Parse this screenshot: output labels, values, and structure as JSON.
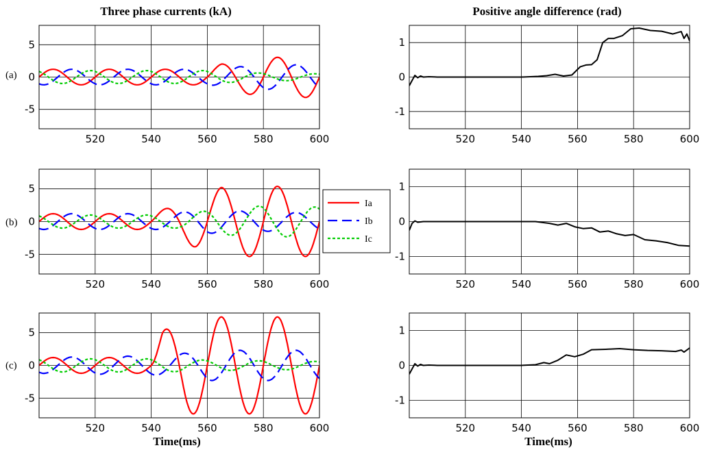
{
  "titles": {
    "left": "Three phase currents (kA)",
    "right": "Positive angle difference (rad)"
  },
  "xlabel": "Time(ms)",
  "row_labels": [
    "(a)",
    "(b)",
    "(c)"
  ],
  "legend": {
    "entries": [
      {
        "name": "Ia",
        "color": "#ff0000",
        "style": "solid"
      },
      {
        "name": "Ib",
        "color": "#0000ff",
        "style": "dashed"
      },
      {
        "name": "Ic",
        "color": "#00cc00",
        "style": "dotted"
      }
    ]
  },
  "colors": {
    "Ia": "#ff0000",
    "Ib": "#0000ff",
    "Ic": "#00cc00",
    "angle": "#000000"
  },
  "chart_data": [
    {
      "type": "line",
      "panel": "a-currents",
      "xlim": [
        500,
        600
      ],
      "ylim": [
        -8,
        8
      ],
      "grid": true,
      "xticks": [
        520,
        540,
        560,
        580,
        600
      ],
      "yticks": [
        5,
        0,
        -5
      ],
      "series": [
        {
          "name": "Ia",
          "envelope": [
            [
              500,
              1.2
            ],
            [
              560,
              1.2
            ],
            [
              565,
              2.0
            ],
            [
              580,
              3.0
            ],
            [
              600,
              3.2
            ]
          ],
          "phase": 0
        },
        {
          "name": "Ib",
          "envelope": [
            [
              500,
              1.2
            ],
            [
              560,
              1.2
            ],
            [
              580,
              1.9
            ],
            [
              600,
              1.9
            ]
          ],
          "phase": -2.094
        },
        {
          "name": "Ic",
          "envelope": [
            [
              500,
              1.0
            ],
            [
              560,
              1.0
            ],
            [
              580,
              0.6
            ],
            [
              600,
              0.5
            ]
          ],
          "phase": 2.094
        }
      ]
    },
    {
      "type": "line",
      "panel": "a-angle",
      "xlim": [
        500,
        600
      ],
      "ylim": [
        -1.5,
        1.5
      ],
      "grid": true,
      "xticks": [
        520,
        540,
        560,
        580,
        600
      ],
      "yticks": [
        1,
        0,
        -1
      ],
      "series": [
        {
          "name": "angle",
          "x": [
            500,
            501,
            502,
            503,
            504,
            505,
            507,
            510,
            540,
            546,
            549,
            552,
            555,
            558,
            561,
            563,
            565,
            567,
            569,
            571,
            573,
            576,
            579,
            582,
            586,
            590,
            594,
            597,
            598,
            599,
            600
          ],
          "y": [
            -0.25,
            -0.1,
            0.05,
            -0.02,
            0.03,
            0.0,
            0.01,
            0.0,
            0.0,
            0.02,
            0.04,
            0.08,
            0.03,
            0.06,
            0.3,
            0.35,
            0.36,
            0.5,
            1.0,
            1.12,
            1.12,
            1.2,
            1.4,
            1.42,
            1.35,
            1.33,
            1.25,
            1.32,
            1.12,
            1.25,
            1.05
          ]
        }
      ]
    },
    {
      "type": "line",
      "panel": "b-currents",
      "xlim": [
        500,
        600
      ],
      "ylim": [
        -8,
        8
      ],
      "grid": true,
      "xticks": [
        520,
        540,
        560,
        580,
        600
      ],
      "yticks": [
        5,
        0,
        -5
      ],
      "series": [
        {
          "name": "Ia",
          "envelope": [
            [
              500,
              1.2
            ],
            [
              540,
              1.2
            ],
            [
              548,
              2.4
            ],
            [
              556,
              4.0
            ],
            [
              565,
              5.2
            ],
            [
              580,
              5.4
            ],
            [
              600,
              5.3
            ]
          ],
          "phase": 0
        },
        {
          "name": "Ib",
          "envelope": [
            [
              500,
              1.2
            ],
            [
              545,
              1.2
            ],
            [
              560,
              1.8
            ],
            [
              580,
              1.5
            ],
            [
              600,
              1.3
            ]
          ],
          "phase": -2.094
        },
        {
          "name": "Ic",
          "envelope": [
            [
              500,
              1.0
            ],
            [
              550,
              1.0
            ],
            [
              565,
              2.0
            ],
            [
              580,
              2.4
            ],
            [
              600,
              2.2
            ]
          ],
          "phase": 2.094
        }
      ]
    },
    {
      "type": "line",
      "panel": "b-angle",
      "xlim": [
        500,
        600
      ],
      "ylim": [
        -1.5,
        1.5
      ],
      "grid": true,
      "xticks": [
        520,
        540,
        560,
        580,
        600
      ],
      "yticks": [
        1,
        0,
        -1
      ],
      "series": [
        {
          "name": "angle",
          "x": [
            500,
            501,
            502,
            503,
            505,
            510,
            540,
            545,
            550,
            553,
            556,
            559,
            562,
            565,
            568,
            571,
            574,
            577,
            580,
            584,
            588,
            592,
            596,
            600
          ],
          "y": [
            -0.25,
            -0.05,
            0.02,
            -0.02,
            0.0,
            0.0,
            0.0,
            0.0,
            -0.05,
            -0.1,
            -0.05,
            -0.15,
            -0.2,
            -0.18,
            -0.3,
            -0.27,
            -0.35,
            -0.4,
            -0.37,
            -0.52,
            -0.55,
            -0.6,
            -0.68,
            -0.7
          ]
        }
      ]
    },
    {
      "type": "line",
      "panel": "c-currents",
      "xlim": [
        500,
        600
      ],
      "ylim": [
        -8,
        8
      ],
      "grid": true,
      "xticks": [
        520,
        540,
        560,
        580,
        600
      ],
      "yticks": [
        5,
        0,
        -5
      ],
      "series": [
        {
          "name": "Ia",
          "envelope": [
            [
              500,
              1.2
            ],
            [
              540,
              1.2
            ],
            [
              544,
              5.2
            ],
            [
              552,
              7.4
            ],
            [
              600,
              7.4
            ]
          ],
          "phase": 0
        },
        {
          "name": "Ib",
          "envelope": [
            [
              500,
              1.2
            ],
            [
              545,
              1.5
            ],
            [
              560,
              2.3
            ],
            [
              600,
              2.3
            ]
          ],
          "phase": -2.094
        },
        {
          "name": "Ic",
          "envelope": [
            [
              500,
              1.0
            ],
            [
              545,
              1.0
            ],
            [
              560,
              0.8
            ],
            [
              600,
              0.6
            ]
          ],
          "phase": 2.094
        }
      ]
    },
    {
      "type": "line",
      "panel": "c-angle",
      "xlim": [
        500,
        600
      ],
      "ylim": [
        -1.5,
        1.5
      ],
      "grid": true,
      "xticks": [
        520,
        540,
        560,
        580,
        600
      ],
      "yticks": [
        1,
        0,
        -1
      ],
      "series": [
        {
          "name": "angle",
          "x": [
            500,
            501,
            502,
            503,
            504,
            505,
            507,
            510,
            540,
            545,
            548,
            550,
            553,
            556,
            559,
            562,
            565,
            570,
            575,
            580,
            585,
            590,
            595,
            597,
            598,
            600
          ],
          "y": [
            -0.25,
            -0.1,
            0.05,
            -0.02,
            0.03,
            0.0,
            0.01,
            0.0,
            0.0,
            0.02,
            0.08,
            0.05,
            0.15,
            0.3,
            0.25,
            0.32,
            0.45,
            0.46,
            0.48,
            0.45,
            0.43,
            0.42,
            0.4,
            0.44,
            0.38,
            0.5
          ]
        }
      ]
    }
  ]
}
